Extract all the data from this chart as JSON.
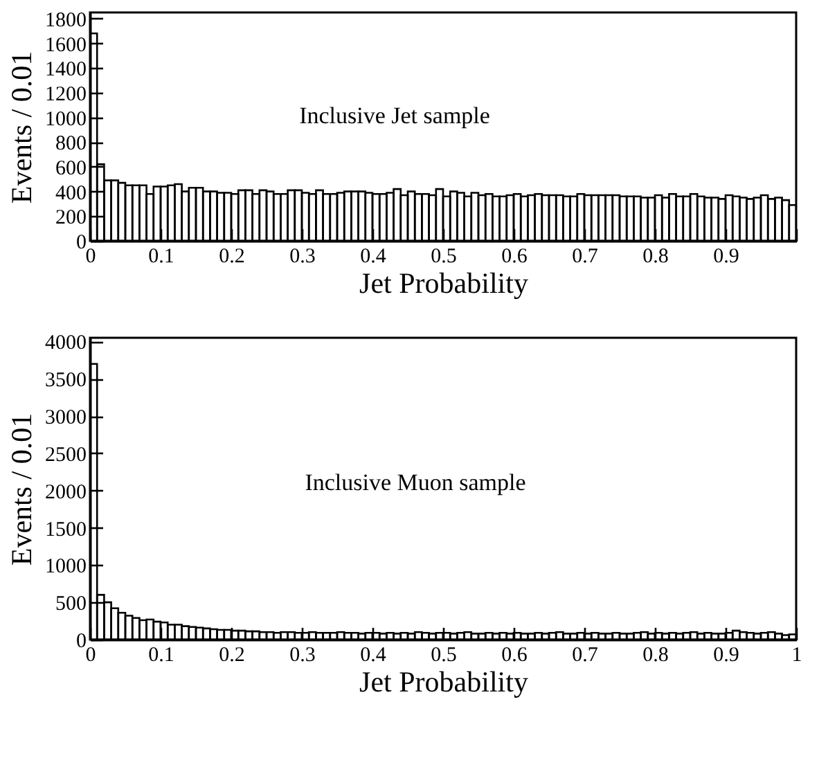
{
  "chart_data": [
    {
      "type": "histogram",
      "xlabel": "Jet Probability",
      "ylabel": "Events / 0.01",
      "annotations": [
        "Inclusive Jet sample"
      ],
      "bins": [
        0,
        0.01,
        0.02,
        0.03,
        0.04,
        0.05,
        0.06,
        0.07,
        0.08,
        0.09,
        0.1,
        0.11,
        0.12,
        0.13,
        0.14,
        0.15,
        0.16,
        0.17,
        0.18,
        0.19,
        0.2,
        0.21,
        0.22,
        0.23,
        0.24,
        0.25,
        0.26,
        0.27,
        0.28,
        0.29,
        0.3,
        0.31,
        0.32,
        0.33,
        0.34,
        0.35,
        0.36,
        0.37,
        0.38,
        0.39,
        0.4,
        0.41,
        0.42,
        0.43,
        0.44,
        0.45,
        0.46,
        0.47,
        0.48,
        0.49,
        0.5,
        0.51,
        0.52,
        0.53,
        0.54,
        0.55,
        0.56,
        0.57,
        0.58,
        0.59,
        0.6,
        0.61,
        0.62,
        0.63,
        0.64,
        0.65,
        0.66,
        0.67,
        0.68,
        0.69,
        0.7,
        0.71,
        0.72,
        0.73,
        0.74,
        0.75,
        0.76,
        0.77,
        0.78,
        0.79,
        0.8,
        0.81,
        0.82,
        0.83,
        0.84,
        0.85,
        0.86,
        0.87,
        0.88,
        0.89,
        0.9,
        0.91,
        0.92,
        0.93,
        0.94,
        0.95,
        0.96,
        0.97,
        0.98,
        0.99,
        1
      ],
      "values": [
        1680,
        620,
        490,
        490,
        470,
        450,
        450,
        450,
        380,
        440,
        440,
        450,
        460,
        400,
        430,
        430,
        400,
        400,
        390,
        390,
        380,
        410,
        410,
        380,
        410,
        400,
        380,
        380,
        410,
        410,
        390,
        380,
        410,
        380,
        380,
        390,
        400,
        400,
        400,
        390,
        380,
        380,
        390,
        420,
        370,
        400,
        380,
        380,
        370,
        420,
        360,
        400,
        390,
        360,
        390,
        370,
        380,
        360,
        360,
        370,
        380,
        360,
        370,
        380,
        370,
        370,
        370,
        360,
        360,
        380,
        370,
        370,
        370,
        370,
        370,
        360,
        360,
        360,
        350,
        350,
        370,
        350,
        380,
        360,
        360,
        380,
        360,
        350,
        350,
        340,
        370,
        360,
        350,
        340,
        350,
        370,
        340,
        350,
        330,
        290
      ],
      "xlim": [
        0,
        1
      ],
      "xticks": [
        0,
        0.1,
        0.2,
        0.3,
        0.4,
        0.5,
        0.6,
        0.7,
        0.8,
        0.9,
        {
          "value": 1,
          "label": null
        }
      ],
      "ylim": [
        0,
        1850
      ],
      "yticks": [
        0,
        200,
        400,
        600,
        800,
        1000,
        1200,
        1400,
        1600,
        1800
      ]
    },
    {
      "type": "histogram",
      "xlabel": "Jet Probability",
      "ylabel": "Events / 0.01",
      "annotations": [
        "Inclusive Muon sample"
      ],
      "bins": [
        0,
        0.01,
        0.02,
        0.03,
        0.04,
        0.05,
        0.06,
        0.07,
        0.08,
        0.09,
        0.1,
        0.11,
        0.12,
        0.13,
        0.14,
        0.15,
        0.16,
        0.17,
        0.18,
        0.19,
        0.2,
        0.21,
        0.22,
        0.23,
        0.24,
        0.25,
        0.26,
        0.27,
        0.28,
        0.29,
        0.3,
        0.31,
        0.32,
        0.33,
        0.34,
        0.35,
        0.36,
        0.37,
        0.38,
        0.39,
        0.4,
        0.41,
        0.42,
        0.43,
        0.44,
        0.45,
        0.46,
        0.47,
        0.48,
        0.49,
        0.5,
        0.51,
        0.52,
        0.53,
        0.54,
        0.55,
        0.56,
        0.57,
        0.58,
        0.59,
        0.6,
        0.61,
        0.62,
        0.63,
        0.64,
        0.65,
        0.66,
        0.67,
        0.68,
        0.69,
        0.7,
        0.71,
        0.72,
        0.73,
        0.74,
        0.75,
        0.76,
        0.77,
        0.78,
        0.79,
        0.8,
        0.81,
        0.82,
        0.83,
        0.84,
        0.85,
        0.86,
        0.87,
        0.88,
        0.89,
        0.9,
        0.91,
        0.92,
        0.93,
        0.94,
        0.95,
        0.96,
        0.97,
        0.98,
        0.99,
        1
      ],
      "values": [
        3700,
        600,
        500,
        420,
        360,
        320,
        290,
        260,
        270,
        240,
        230,
        200,
        200,
        180,
        170,
        160,
        150,
        140,
        130,
        130,
        120,
        120,
        110,
        110,
        100,
        100,
        90,
        100,
        100,
        90,
        90,
        100,
        90,
        90,
        90,
        100,
        90,
        90,
        80,
        90,
        90,
        80,
        90,
        80,
        90,
        80,
        100,
        90,
        80,
        90,
        90,
        80,
        90,
        100,
        80,
        80,
        90,
        80,
        90,
        80,
        90,
        80,
        80,
        90,
        80,
        90,
        100,
        80,
        80,
        90,
        80,
        90,
        80,
        80,
        90,
        80,
        80,
        90,
        100,
        80,
        90,
        80,
        90,
        80,
        90,
        100,
        80,
        90,
        80,
        80,
        90,
        120,
        100,
        90,
        80,
        90,
        100,
        80,
        60,
        70
      ],
      "xlim": [
        0,
        1
      ],
      "xticks": [
        0,
        0.1,
        0.2,
        0.3,
        0.4,
        0.5,
        0.6,
        0.7,
        0.8,
        0.9,
        1
      ],
      "ylim": [
        0,
        4050
      ],
      "yticks": [
        0,
        500,
        1000,
        1500,
        2000,
        2500,
        3000,
        3500,
        4000
      ]
    }
  ]
}
